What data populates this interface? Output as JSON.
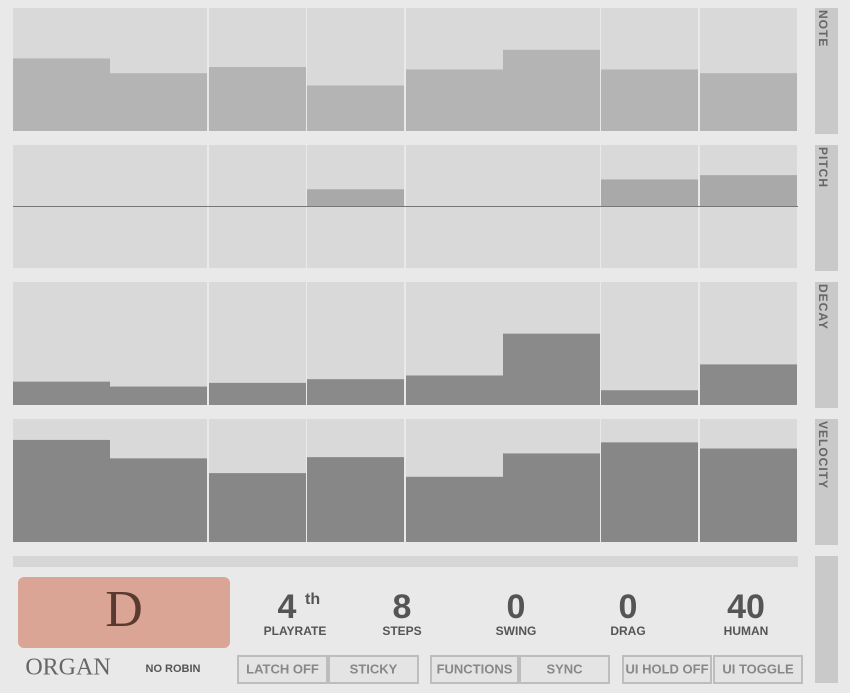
{
  "lanes": [
    {
      "label": "NOTE",
      "range": [
        0,
        100
      ],
      "values": [
        59,
        47,
        52,
        37,
        50,
        66,
        50,
        47
      ]
    },
    {
      "label": "PITCH",
      "range": [
        -100,
        100
      ],
      "values": [
        0,
        0,
        0,
        28,
        0,
        0,
        44,
        51
      ]
    },
    {
      "label": "DECAY",
      "range": [
        0,
        100
      ],
      "values": [
        19,
        15,
        18,
        21,
        24,
        58,
        12,
        33
      ]
    },
    {
      "label": "VELOCITY",
      "range": [
        0,
        100
      ],
      "values": [
        83,
        68,
        56,
        69,
        53,
        72,
        81,
        76
      ]
    }
  ],
  "preset": {
    "key": "D",
    "name": "ORGAN",
    "mode": "NO ROBIN"
  },
  "params": [
    {
      "value": 4,
      "suffix": "th",
      "label": "PLAYRATE"
    },
    {
      "value": 8,
      "label": "STEPS"
    },
    {
      "value": 0,
      "label": "SWING"
    },
    {
      "value": 0,
      "label": "DRAG"
    },
    {
      "value": 40,
      "label": "HUMAN"
    }
  ],
  "buttons": [
    "LATCH OFF",
    "STICKY",
    "FUNCTIONS",
    "SYNC",
    "UI HOLD OFF",
    "UI TOGGLE"
  ]
}
